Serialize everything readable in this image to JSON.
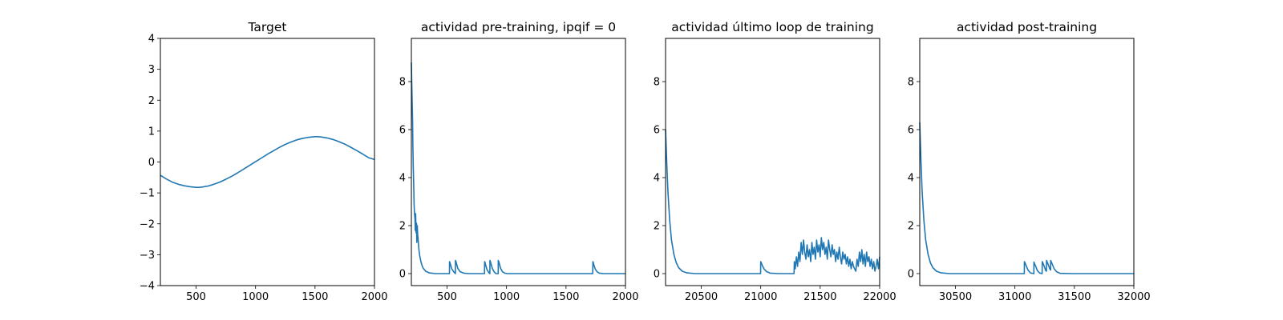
{
  "colors": {
    "series": "#1f77b4",
    "axes": "#000000",
    "background": "#ffffff"
  },
  "chart_data": [
    {
      "type": "line",
      "title": "Target",
      "xlabel": "",
      "ylabel": "",
      "xlim": [
        200,
        2000
      ],
      "ylim": [
        -4,
        4
      ],
      "xticks": [
        500,
        1000,
        1500,
        2000
      ],
      "yticks": [
        -4,
        -3,
        -2,
        -1,
        0,
        1,
        2,
        3,
        4
      ],
      "grid": false,
      "series": [
        {
          "x": [
            200,
            250,
            300,
            350,
            400,
            450,
            500,
            525,
            550,
            600,
            650,
            700,
            750,
            800,
            850,
            900,
            950,
            1000,
            1050,
            1100,
            1150,
            1200,
            1250,
            1300,
            1350,
            1400,
            1450,
            1500,
            1525,
            1550,
            1600,
            1650,
            1700,
            1750,
            1800,
            1850,
            1900,
            1950,
            2000
          ],
          "y": [
            -0.43,
            -0.55,
            -0.65,
            -0.72,
            -0.77,
            -0.8,
            -0.82,
            -0.82,
            -0.81,
            -0.78,
            -0.72,
            -0.65,
            -0.56,
            -0.46,
            -0.35,
            -0.23,
            -0.11,
            0.01,
            0.13,
            0.25,
            0.36,
            0.47,
            0.57,
            0.65,
            0.72,
            0.77,
            0.8,
            0.82,
            0.82,
            0.81,
            0.78,
            0.73,
            0.66,
            0.58,
            0.48,
            0.37,
            0.26,
            0.14,
            0.08
          ]
        }
      ]
    },
    {
      "type": "line",
      "title": "actividad pre-training, ipqif = 0",
      "xlabel": "",
      "ylabel": "",
      "xlim": [
        200,
        2000
      ],
      "ylim": [
        -0.5,
        9.8
      ],
      "xticks": [
        500,
        1000,
        1500,
        2000
      ],
      "yticks": [
        0,
        2,
        4,
        6,
        8
      ],
      "grid": false,
      "series": [
        {
          "x": [
            200,
            203,
            206,
            210,
            213,
            216,
            220,
            223,
            226,
            230,
            233,
            236,
            240,
            243,
            246,
            250,
            253,
            256,
            260,
            265,
            270,
            280,
            290,
            300,
            320,
            350,
            400,
            450,
            520,
            521,
            525,
            530,
            540,
            555,
            570,
            571,
            575,
            580,
            590,
            610,
            640,
            680,
            750,
            815,
            816,
            820,
            825,
            835,
            850,
            860,
            861,
            865,
            870,
            880,
            895,
            910,
            930,
            931,
            935,
            940,
            950,
            965,
            985,
            1010,
            1100,
            1300,
            1500,
            1725,
            1726,
            1730,
            1735,
            1745,
            1760,
            1780,
            1810,
            1850,
            1900,
            2000
          ],
          "y": [
            8.8,
            8.1,
            7.3,
            6.4,
            5.3,
            4.4,
            3.6,
            2.9,
            2.5,
            2.3,
            1.8,
            2.5,
            1.7,
            2.1,
            1.3,
            2.0,
            1.6,
            1.5,
            1.2,
            0.95,
            0.75,
            0.5,
            0.33,
            0.22,
            0.1,
            0.03,
            0.0,
            0.0,
            0.0,
            0.5,
            0.45,
            0.35,
            0.2,
            0.08,
            0.0,
            0.55,
            0.5,
            0.4,
            0.22,
            0.08,
            0.02,
            0.0,
            0.0,
            0.0,
            0.5,
            0.45,
            0.35,
            0.18,
            0.05,
            0.0,
            0.55,
            0.5,
            0.4,
            0.22,
            0.08,
            0.0,
            0.0,
            0.55,
            0.5,
            0.4,
            0.22,
            0.08,
            0.02,
            0.0,
            0.0,
            0.0,
            0.0,
            0.0,
            0.5,
            0.45,
            0.35,
            0.2,
            0.08,
            0.02,
            0.0,
            0.0,
            0.0,
            0.0
          ]
        }
      ]
    },
    {
      "type": "line",
      "title": "actividad último loop de training",
      "xlabel": "",
      "ylabel": "",
      "xlim": [
        20200,
        22000
      ],
      "ylim": [
        -0.5,
        9.8
      ],
      "xticks": [
        20500,
        21000,
        21500,
        22000
      ],
      "yticks": [
        0,
        2,
        4,
        6,
        8
      ],
      "grid": false,
      "series": [
        {
          "x": [
            20200,
            20210,
            20220,
            20235,
            20250,
            20270,
            20290,
            20310,
            20340,
            20380,
            20450,
            20600,
            20800,
            20999,
            21000,
            21005,
            21015,
            21030,
            21050,
            21080,
            21150,
            21280,
            21283,
            21290,
            21300,
            21310,
            21320,
            21330,
            21340,
            21350,
            21360,
            21370,
            21380,
            21390,
            21400,
            21410,
            21420,
            21430,
            21440,
            21450,
            21460,
            21470,
            21480,
            21490,
            21500,
            21510,
            21520,
            21530,
            21540,
            21550,
            21560,
            21570,
            21580,
            21590,
            21600,
            21610,
            21620,
            21630,
            21640,
            21650,
            21660,
            21670,
            21680,
            21690,
            21700,
            21710,
            21720,
            21730,
            21740,
            21750,
            21760,
            21770,
            21780,
            21790,
            21800,
            21810,
            21820,
            21830,
            21840,
            21850,
            21860,
            21870,
            21880,
            21890,
            21900,
            21910,
            21920,
            21930,
            21940,
            21950,
            21960,
            21970,
            21980,
            21990,
            22000
          ],
          "y": [
            6.0,
            4.6,
            3.4,
            2.2,
            1.4,
            0.8,
            0.45,
            0.25,
            0.1,
            0.03,
            0.0,
            0.0,
            0.0,
            0.0,
            0.5,
            0.45,
            0.32,
            0.18,
            0.08,
            0.02,
            0.0,
            0.0,
            0.5,
            0.2,
            0.7,
            0.3,
            0.9,
            0.5,
            1.3,
            0.8,
            1.4,
            0.9,
            0.6,
            1.2,
            0.7,
            1.0,
            0.5,
            1.3,
            0.8,
            1.1,
            0.6,
            1.4,
            0.9,
            1.2,
            0.7,
            1.5,
            1.0,
            1.3,
            0.8,
            1.1,
            0.6,
            1.4,
            1.0,
            0.7,
            1.2,
            0.8,
            1.0,
            0.5,
            0.9,
            0.6,
            1.1,
            0.7,
            0.4,
            0.9,
            0.6,
            0.8,
            0.4,
            0.7,
            0.3,
            0.6,
            0.2,
            0.5,
            0.3,
            0.2,
            0.1,
            0.6,
            0.3,
            0.9,
            0.5,
            1.0,
            0.4,
            0.8,
            0.3,
            0.9,
            0.5,
            0.7,
            0.3,
            0.6,
            0.2,
            0.5,
            0.1,
            0.3,
            0.6,
            0.2,
            0.7
          ]
        }
      ]
    },
    {
      "type": "line",
      "title": "actividad post-training",
      "xlabel": "",
      "ylabel": "",
      "xlim": [
        30200,
        32000
      ],
      "ylim": [
        -0.5,
        9.8
      ],
      "xticks": [
        30500,
        31000,
        31500,
        32000
      ],
      "yticks": [
        0,
        2,
        4,
        6,
        8
      ],
      "grid": false,
      "series": [
        {
          "x": [
            30200,
            30210,
            30220,
            30235,
            30250,
            30270,
            30290,
            30310,
            30340,
            30380,
            30450,
            30700,
            31079,
            31080,
            31085,
            31095,
            31110,
            31130,
            31159,
            31160,
            31165,
            31175,
            31190,
            31210,
            31229,
            31230,
            31235,
            31245,
            31260,
            31265,
            31266,
            31270,
            31280,
            31295,
            31300,
            31301,
            31305,
            31315,
            31330,
            31350,
            31380,
            31500,
            31750,
            32000
          ],
          "y": [
            6.3,
            4.7,
            3.4,
            2.2,
            1.4,
            0.8,
            0.45,
            0.25,
            0.1,
            0.03,
            0.0,
            0.0,
            0.0,
            0.5,
            0.45,
            0.32,
            0.15,
            0.03,
            0.0,
            0.48,
            0.42,
            0.3,
            0.12,
            0.02,
            0.0,
            0.5,
            0.45,
            0.32,
            0.12,
            0.1,
            0.55,
            0.5,
            0.38,
            0.18,
            0.15,
            0.55,
            0.5,
            0.38,
            0.2,
            0.08,
            0.01,
            0.0,
            0.0,
            0.0
          ]
        }
      ]
    }
  ]
}
